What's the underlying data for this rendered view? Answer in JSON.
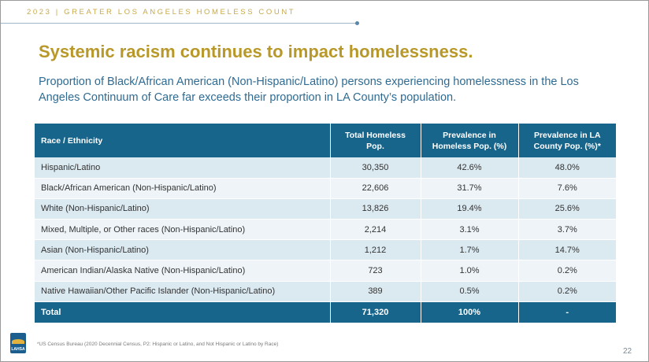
{
  "header": {
    "top_label": "2023 | GREATER LOS ANGELES HOMELESS COUNT",
    "title": "Systemic racism continues to impact homelessness.",
    "subtitle": "Proportion of Black/African American (Non-Hispanic/Latino) persons experiencing homelessness in the Los Angeles Continuum of Care far exceeds their proportion in LA County’s population."
  },
  "table": {
    "columns": [
      "Race / Ethnicity",
      "Total Homeless Pop.",
      "Prevalence in Homeless Pop. (%)",
      "Prevalence in LA County Pop. (%)*"
    ],
    "rows": [
      [
        "Hispanic/Latino",
        "30,350",
        "42.6%",
        "48.0%"
      ],
      [
        "Black/African American (Non-Hispanic/Latino)",
        "22,606",
        "31.7%",
        "7.6%"
      ],
      [
        "White (Non-Hispanic/Latino)",
        "13,826",
        "19.4%",
        "25.6%"
      ],
      [
        "Mixed, Multiple, or Other races (Non-Hispanic/Latino)",
        "2,214",
        "3.1%",
        "3.7%"
      ],
      [
        "Asian (Non-Hispanic/Latino)",
        "1,212",
        "1.7%",
        "14.7%"
      ],
      [
        "American Indian/Alaska Native (Non-Hispanic/Latino)",
        "723",
        "1.0%",
        "0.2%"
      ],
      [
        "Native Hawaiian/Other Pacific Islander (Non-Hispanic/Latino)",
        "389",
        "0.5%",
        "0.2%"
      ]
    ],
    "total": [
      "Total",
      "71,320",
      "100%",
      "-"
    ]
  },
  "footer": {
    "logo_text": "LAHSA",
    "footnote": "*US Census Bureau (2020 Decennial Census, P2: Hispanic or Latino, and Not Hispanic or Latino by Race)",
    "page_number": "22"
  },
  "colors": {
    "title_gold": "#b79828",
    "subtitle_blue": "#2e6b93",
    "table_header": "#18658c",
    "row_light": "#dbe9f1",
    "row_lighter": "#eef4f8"
  }
}
